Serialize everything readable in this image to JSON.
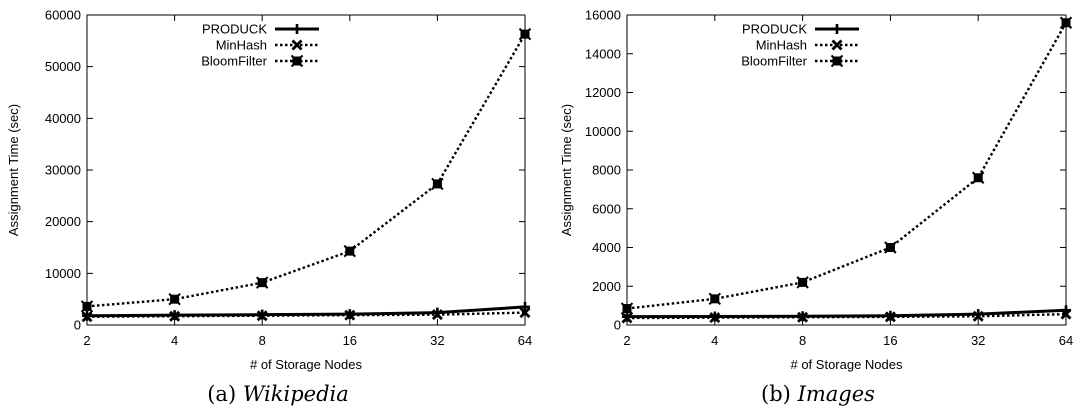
{
  "chart_data": [
    {
      "type": "line",
      "caption_prefix": "(a)",
      "caption_name": "Wikipedia",
      "xlabel": "# of Storage Nodes",
      "ylabel": "Assignment Time (sec)",
      "x_scale": "log2",
      "categories": [
        "2",
        "4",
        "8",
        "16",
        "32",
        "64"
      ],
      "x": [
        2,
        4,
        8,
        16,
        32,
        64
      ],
      "ylim": [
        0,
        60000
      ],
      "yticks": [
        0,
        10000,
        20000,
        30000,
        40000,
        50000,
        60000
      ],
      "legend_position": "top-left",
      "grid": false,
      "series": [
        {
          "name": "PRODUCK",
          "style": "solid",
          "marker": "plus",
          "values": [
            1800,
            1900,
            2000,
            2100,
            2400,
            3500
          ]
        },
        {
          "name": "MinHash",
          "style": "dotted",
          "marker": "x",
          "values": [
            1600,
            1700,
            1800,
            1900,
            2000,
            2400
          ]
        },
        {
          "name": "BloomFilter",
          "style": "dotted",
          "marker": "filled-box",
          "values": [
            3600,
            5000,
            8200,
            14300,
            27300,
            56300
          ]
        }
      ]
    },
    {
      "type": "line",
      "caption_prefix": "(b)",
      "caption_name": "Images",
      "xlabel": "# of Storage Nodes",
      "ylabel": "Assignment Time (sec)",
      "x_scale": "log2",
      "categories": [
        "2",
        "4",
        "8",
        "16",
        "32",
        "64"
      ],
      "x": [
        2,
        4,
        8,
        16,
        32,
        64
      ],
      "ylim": [
        0,
        16000
      ],
      "yticks": [
        0,
        2000,
        4000,
        6000,
        8000,
        10000,
        12000,
        14000,
        16000
      ],
      "legend_position": "top-left",
      "grid": false,
      "series": [
        {
          "name": "PRODUCK",
          "style": "solid",
          "marker": "plus",
          "values": [
            430,
            440,
            450,
            480,
            560,
            760
          ]
        },
        {
          "name": "MinHash",
          "style": "dotted",
          "marker": "x",
          "values": [
            360,
            380,
            400,
            420,
            450,
            560
          ]
        },
        {
          "name": "BloomFilter",
          "style": "dotted",
          "marker": "filled-box",
          "values": [
            850,
            1350,
            2200,
            4000,
            7600,
            15600
          ]
        }
      ]
    }
  ]
}
